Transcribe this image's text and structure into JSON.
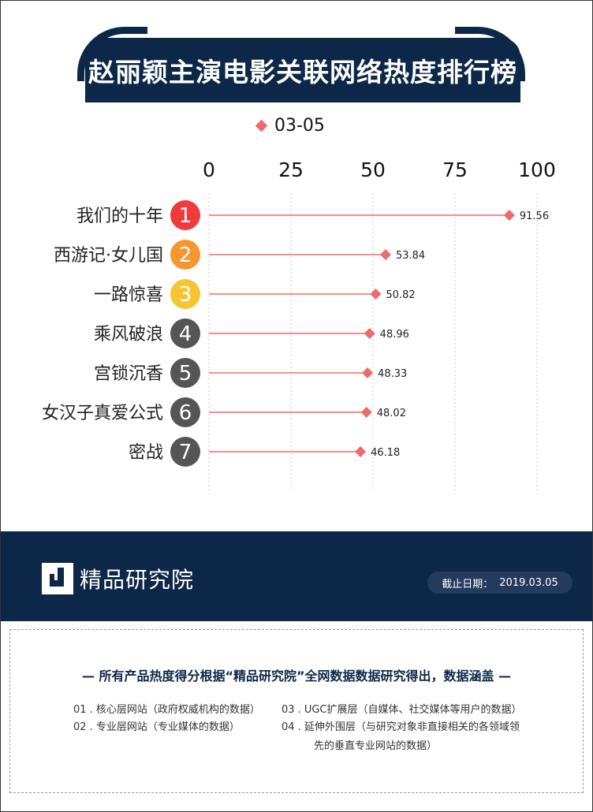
{
  "title": "赵丽颖主演电影关联网络热度排行榜",
  "legend": {
    "label": "03-05",
    "color": "#ee6a6a"
  },
  "chart_data": {
    "type": "scatter",
    "title": "赵丽颖主演电影关联网络热度排行榜",
    "categories": [
      "我们的十年",
      "西游记·女儿国",
      "一路惊喜",
      "乘风破浪",
      "宫锁沉香",
      "女汉子真爱公式",
      "密战"
    ],
    "ranks": [
      "1",
      "2",
      "3",
      "4",
      "5",
      "6",
      "7"
    ],
    "series": [
      {
        "name": "03-05",
        "values": [
          91.56,
          53.84,
          50.82,
          48.96,
          48.33,
          48.02,
          46.18
        ]
      }
    ],
    "value_labels": [
      "91.56",
      "53.84",
      "50.82",
      "48.96",
      "48.33",
      "48.02",
      "46.18"
    ],
    "xlim": [
      0,
      100
    ],
    "xticks": [
      "0",
      "25",
      "50",
      "75",
      "100"
    ],
    "xtick_values": [
      0,
      25,
      50,
      75,
      100
    ],
    "grid": true,
    "legend_position": "top",
    "colors": {
      "marker": "#ee6a6a",
      "rank_1": "#ef3b3b",
      "rank_2": "#f5962f",
      "rank_3": "#f7c531",
      "rank_other": "#555555"
    }
  },
  "footer": {
    "brand": "精品研究院",
    "date_label": "截止日期：",
    "date_value": "2019.03.05",
    "bg_color": "#0d2748"
  },
  "notes": {
    "headline": "— 所有产品热度得分根据“精品研究院”全网数据数据研究得出，数据涵盖 —",
    "items": [
      {
        "num": "01 .",
        "text": "核心层网站（政府权威机构的数据）"
      },
      {
        "num": "03 .",
        "text": "UGC扩展层（自媒体、社交媒体等用户的数据）"
      },
      {
        "num": "02 .",
        "text": "专业层网站（专业媒体的数据）"
      },
      {
        "num": "04 .",
        "text": "延伸外围层（与研究对象非直接相关的各领域领"
      },
      {
        "num": "",
        "text": "先的垂直专业网站的数据）"
      }
    ]
  }
}
